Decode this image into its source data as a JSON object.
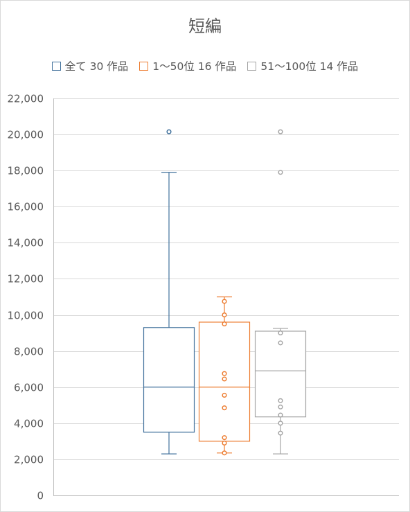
{
  "chart_data": {
    "type": "box",
    "title": "短編",
    "ylim": [
      0,
      22000
    ],
    "y_ticks": [
      "0",
      "2,000",
      "4,000",
      "6,000",
      "8,000",
      "10,000",
      "12,000",
      "14,000",
      "16,000",
      "18,000",
      "20,000",
      "22,000"
    ],
    "y_tick_values": [
      0,
      2000,
      4000,
      6000,
      8000,
      10000,
      12000,
      14000,
      16000,
      18000,
      20000,
      22000
    ],
    "grid": true,
    "legend_position": "top",
    "series": [
      {
        "name": "全て 30 作品",
        "color": "#41719c",
        "whisker_low": 2300,
        "q1": 3500,
        "median": 6000,
        "q3": 9300,
        "whisker_high": 17900,
        "points": [
          20150
        ]
      },
      {
        "name": "1〜50位 16 作品",
        "color": "#ed7d31",
        "whisker_low": 2350,
        "q1": 3000,
        "median": 6000,
        "q3": 9600,
        "whisker_high": 11000,
        "points": [
          2350,
          2900,
          3200,
          4850,
          5550,
          6450,
          6750,
          9500,
          10000,
          10750
        ]
      },
      {
        "name": "51〜100位 14 作品",
        "color": "#a5a5a5",
        "whisker_low": 2300,
        "q1": 4350,
        "median": 6900,
        "q3": 9100,
        "whisker_high": 9250,
        "points": [
          3450,
          4000,
          4450,
          4900,
          5250,
          8450,
          9000,
          17900,
          20150
        ]
      }
    ]
  }
}
